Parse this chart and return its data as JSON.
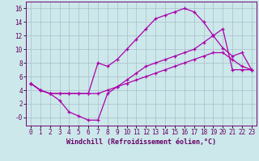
{
  "xlabel": "Windchill (Refroidissement éolien,°C)",
  "background_color": "#cce8ea",
  "grid_color": "#aabccc",
  "line_color": "#aa00aa",
  "xlim": [
    -0.5,
    23.5
  ],
  "ylim": [
    -1.2,
    17
  ],
  "xticks": [
    0,
    1,
    2,
    3,
    4,
    5,
    6,
    7,
    8,
    9,
    10,
    11,
    12,
    13,
    14,
    15,
    16,
    17,
    18,
    19,
    20,
    21,
    22,
    23
  ],
  "yticks": [
    0,
    2,
    4,
    6,
    8,
    10,
    12,
    14,
    16
  ],
  "ytick_labels": [
    "-0",
    "2",
    "4",
    "6",
    "8",
    "10",
    "12",
    "14",
    "16"
  ],
  "line1_x": [
    0,
    1,
    2,
    3,
    4,
    5,
    6,
    7,
    8,
    9,
    10,
    11,
    12,
    13,
    14,
    15,
    16,
    17,
    18,
    19,
    20,
    21,
    22,
    23
  ],
  "line1_y": [
    5.0,
    4.0,
    3.5,
    3.5,
    3.5,
    3.5,
    3.5,
    8.0,
    7.5,
    8.5,
    10.0,
    11.5,
    13.0,
    14.5,
    15.0,
    15.5,
    16.0,
    15.5,
    14.0,
    12.0,
    10.2,
    9.0,
    9.5,
    7.0
  ],
  "line2_x": [
    0,
    1,
    2,
    3,
    4,
    5,
    6,
    7,
    8,
    9,
    10,
    11,
    12,
    13,
    14,
    15,
    16,
    17,
    18,
    19,
    20,
    21,
    22,
    23
  ],
  "line2_y": [
    5.0,
    4.0,
    3.5,
    2.5,
    0.8,
    0.2,
    -0.4,
    -0.4,
    3.5,
    4.5,
    5.5,
    6.5,
    7.5,
    8.0,
    8.5,
    9.0,
    9.5,
    10.0,
    11.0,
    12.0,
    13.0,
    7.0,
    7.0,
    7.0
  ],
  "line3_x": [
    0,
    1,
    2,
    3,
    4,
    5,
    6,
    7,
    8,
    9,
    10,
    11,
    12,
    13,
    14,
    15,
    16,
    17,
    18,
    19,
    20,
    21,
    22,
    23
  ],
  "line3_y": [
    5.0,
    4.0,
    3.5,
    3.5,
    3.5,
    3.5,
    3.5,
    3.5,
    4.0,
    4.5,
    5.0,
    5.5,
    6.0,
    6.5,
    7.0,
    7.5,
    8.0,
    8.5,
    9.0,
    9.5,
    9.5,
    8.5,
    7.5,
    7.0
  ]
}
